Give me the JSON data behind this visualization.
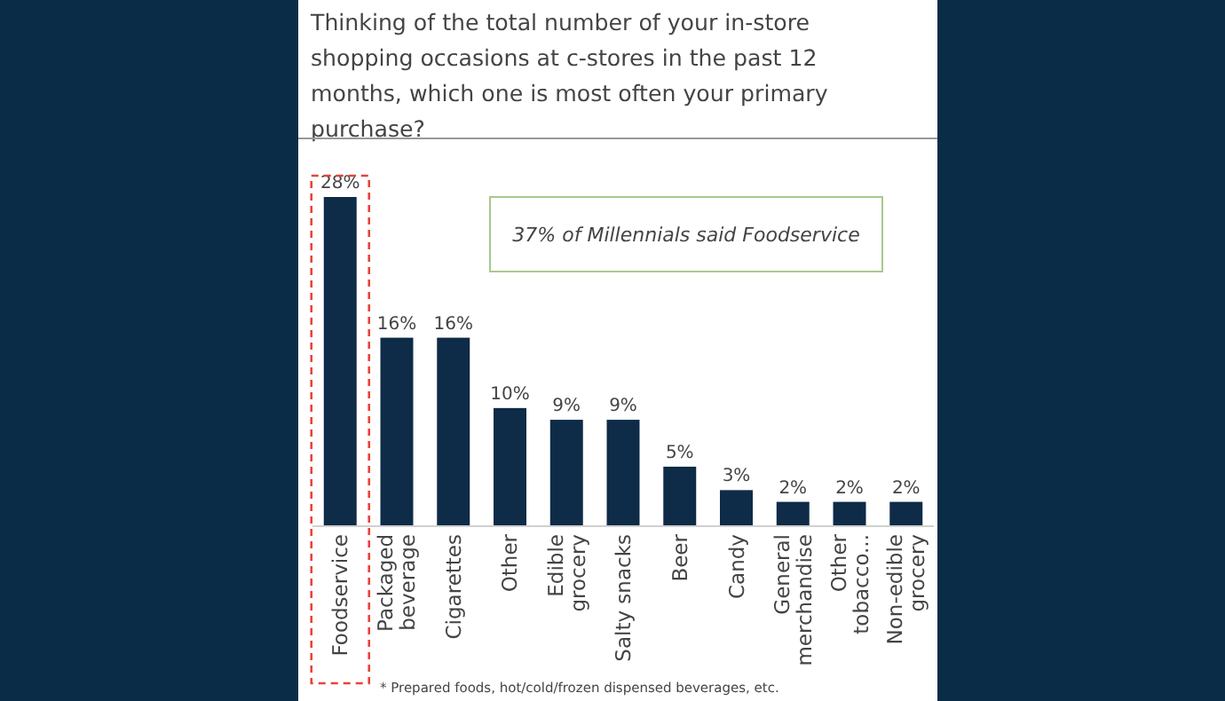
{
  "chart_data": {
    "type": "bar",
    "title": "Thinking of the total number of your in-store shopping occasions at c-stores in the past 12 months, which one is most often your primary purchase?",
    "categories": [
      "Foodservice",
      "Packaged\nbeverage",
      "Cigarettes",
      "Other",
      "Edible\ngrocery",
      "Salty snacks",
      "Beer",
      "Candy",
      "General\nmerchandise",
      "Other\ntobacco...",
      "Non-edible\ngrocery"
    ],
    "values": [
      28,
      16,
      16,
      10,
      9,
      9,
      5,
      3,
      2,
      2,
      2
    ],
    "value_labels": [
      "28%",
      "16%",
      "16%",
      "10%",
      "9%",
      "9%",
      "5%",
      "3%",
      "2%",
      "2%",
      "2%"
    ],
    "color": "#0e2b47",
    "annotations": [
      "37% of Millennials said Foodservice",
      "* Prepared foods, hot/cold/frozen dispensed beverages, etc."
    ]
  }
}
